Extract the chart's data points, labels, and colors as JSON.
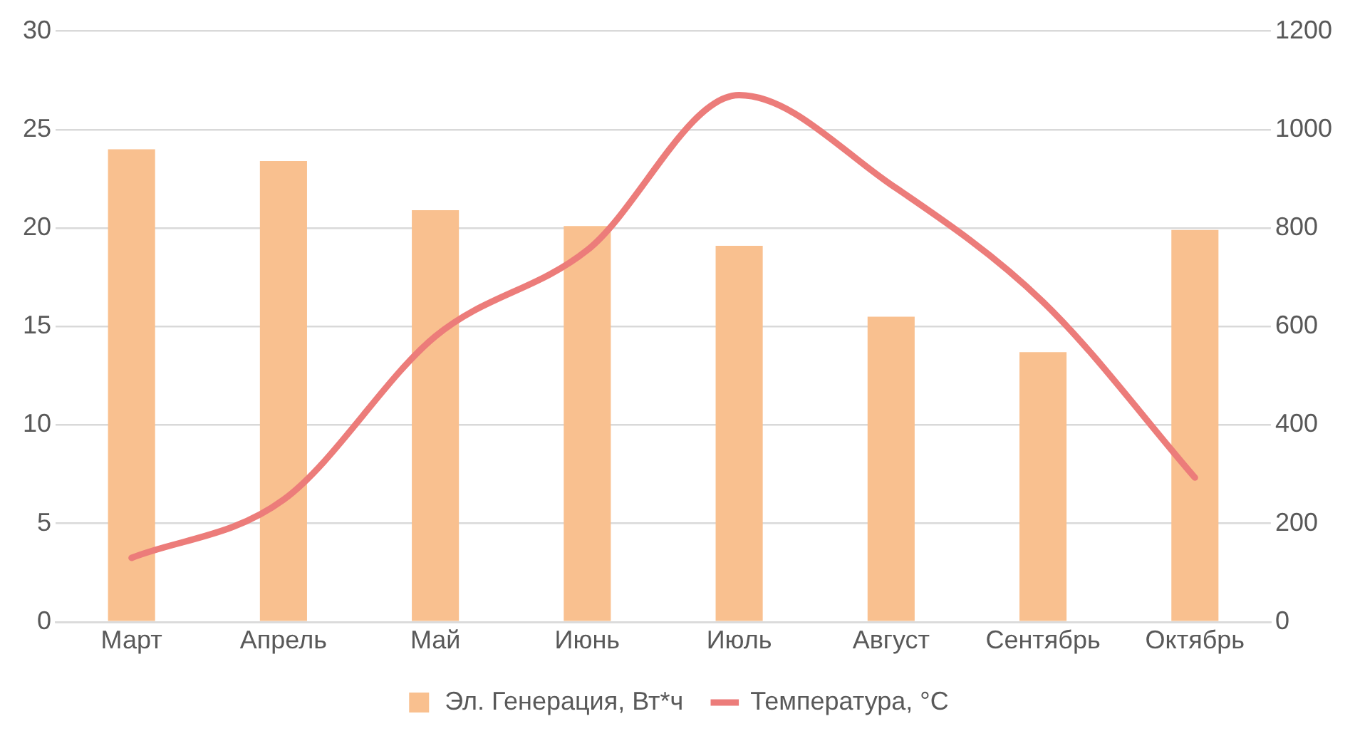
{
  "chart_data": {
    "type": "bar",
    "categories": [
      "Март",
      "Апрель",
      "Май",
      "Июнь",
      "Июль",
      "Август",
      "Сентябрь",
      "Октябрь"
    ],
    "series": [
      {
        "name": "Эл. Генерация, Вт*ч",
        "color": "#f9c08f",
        "values": [
          24.0,
          23.4,
          20.9,
          20.1,
          19.1,
          15.5,
          13.7,
          19.9
        ]
      },
      {
        "name": "Температура, °C",
        "type": "line",
        "axis": "y2",
        "color": "#ec7c7a",
        "values": [
          130,
          248,
          580,
          755,
          1070,
          888,
          650,
          293
        ]
      }
    ],
    "ylim": [
      0,
      30
    ],
    "yticks": [
      0,
      5,
      10,
      15,
      20,
      25,
      30
    ],
    "y2lim": [
      0,
      1200
    ],
    "y2ticks": [
      0,
      200,
      400,
      600,
      800,
      1000,
      1200
    ],
    "grid": "y",
    "legend": "bottom",
    "marker": "none",
    "line_style": "solid"
  }
}
